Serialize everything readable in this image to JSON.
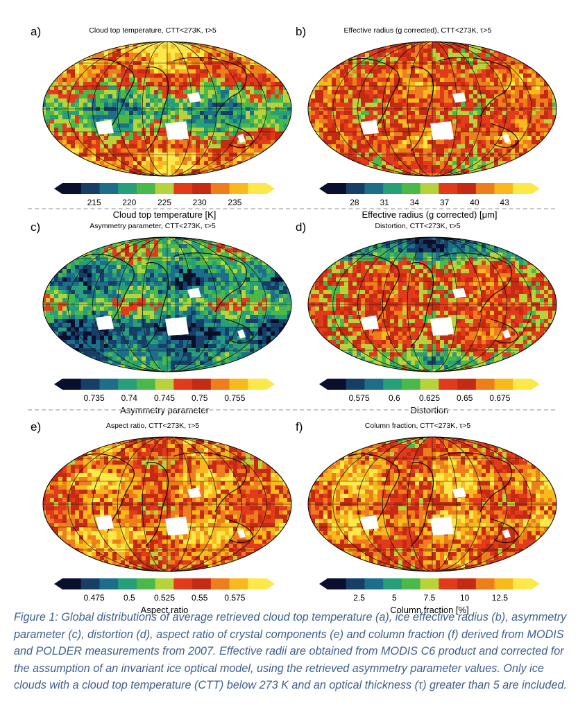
{
  "panels": [
    {
      "letter": "a)",
      "title": "Cloud top temperature, CTT<273K, τ>5",
      "ticks": [
        "215",
        "220",
        "225",
        "230",
        "235"
      ],
      "colorbar_label": "Cloud top temperature [K]",
      "pattern": "ctt"
    },
    {
      "letter": "b)",
      "title": "Effective radius (g corrected), CTT<273K, τ>5",
      "ticks": [
        "28",
        "31",
        "34",
        "37",
        "40",
        "43"
      ],
      "colorbar_label": "Effective radius (g corrected) [μm]",
      "pattern": "reff"
    },
    {
      "letter": "c)",
      "title": "Asymmetry parameter, CTT<273K, τ>5",
      "ticks": [
        "0.735",
        "0.74",
        "0.745",
        "0.75",
        "0.755"
      ],
      "colorbar_label": "Asymmetry parameter",
      "pattern": "asym"
    },
    {
      "letter": "d)",
      "title": "Distortion, CTT<273K, τ>5",
      "ticks": [
        "0.575",
        "0.6",
        "0.625",
        "0.65",
        "0.675"
      ],
      "colorbar_label": "Distortion",
      "pattern": "dist"
    },
    {
      "letter": "e)",
      "title": "Aspect ratio, CTT<273K, τ>5",
      "ticks": [
        "0.475",
        "0.5",
        "0.525",
        "0.55",
        "0.575"
      ],
      "colorbar_label": "Aspect ratio",
      "pattern": "aspect"
    },
    {
      "letter": "f)",
      "title": "Column fraction, CTT<273K, τ>5",
      "ticks": [
        "2.5",
        "5",
        "7.5",
        "10",
        "12.5"
      ],
      "colorbar_label": "Column fraction [%]",
      "pattern": "colfrac"
    }
  ],
  "caption": "Figure 1: Global distributions of average retrieved cloud top temperature (a), ice effective radius (b), asymmetry parameter (c), distortion (d), aspect ratio of crystal components (e) and column fraction (f) derived from MODIS and POLDER measurements from 2007. Effective radii are obtained from MODIS C6 product and corrected for the assumption of an invariant ice optical model, using the retrieved asymmetry parameter values. Only ice clouds with a cloud top temperature (CTT) below 273 K and an optical thickness (τ) greater than 5 are included.",
  "colormap": [
    "#0a0f2e",
    "#173e66",
    "#1d6e8a",
    "#27a07a",
    "#4bb84a",
    "#b7d23a",
    "#e23b1c",
    "#c52a12",
    "#ee7d1c",
    "#f7b91c",
    "#fde84a"
  ]
}
